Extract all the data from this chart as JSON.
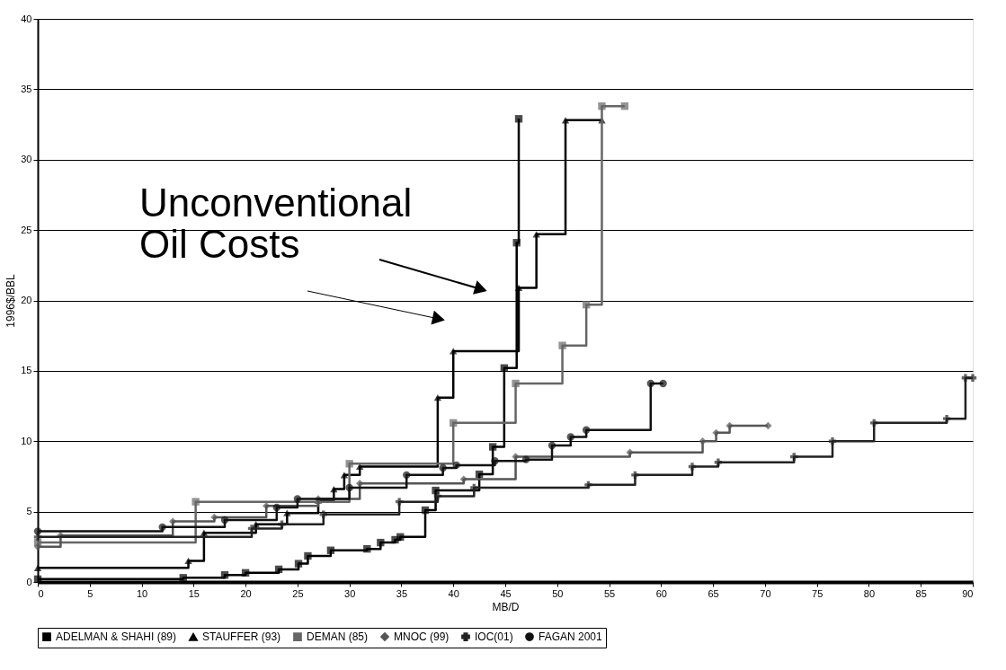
{
  "chart_data": {
    "type": "step",
    "xlabel": "MB/D",
    "ylabel": "1996$/BBL",
    "xlim": [
      0,
      90
    ],
    "xticks": [
      0,
      5,
      10,
      15,
      20,
      25,
      30,
      35,
      40,
      45,
      50,
      55,
      60,
      65,
      70,
      75,
      80,
      85,
      90
    ],
    "ylim": [
      0,
      40
    ],
    "yticks": [
      0,
      5,
      10,
      15,
      20,
      25,
      30,
      35,
      40
    ],
    "grid": "y",
    "legend": "bottom",
    "annotations": [
      "Unconventional\nOil Costs"
    ],
    "series": [
      {
        "name": "ADELMAN & SHAHI (89)",
        "color": "#000000",
        "marker": "square",
        "x": [
          0,
          14,
          18,
          20,
          23.2,
          25.1,
          26,
          28.2,
          31.7,
          33,
          34.4,
          34.9,
          37.3,
          38.3,
          42.5,
          43.8,
          44.9,
          46.1,
          46.3
        ],
        "values": [
          0.2,
          0.3,
          0.5,
          0.65,
          0.9,
          1.3,
          1.85,
          2.25,
          2.35,
          2.8,
          3.0,
          3.2,
          5.1,
          6.5,
          7.65,
          9.6,
          15.2,
          24.1,
          32.9
        ]
      },
      {
        "name": "STAUFFER (93)",
        "color": "#000000",
        "marker": "triangle",
        "x": [
          0,
          14.5,
          16,
          21,
          24,
          27,
          28.5,
          29.5,
          31,
          38.5,
          40,
          46.3,
          48,
          50.8,
          54.3
        ],
        "values": [
          1.0,
          1.5,
          3.5,
          4.1,
          4.9,
          5.8,
          6.6,
          7.6,
          8.2,
          13.1,
          16.4,
          20.9,
          24.7,
          32.8,
          32.8
        ]
      },
      {
        "name": "DEMAN (85)",
        "color": "#666666",
        "marker": "square",
        "x": [
          0,
          15.2,
          30,
          40,
          46,
          50.5,
          52.8,
          54.3,
          56.5
        ],
        "values": [
          2.8,
          5.7,
          8.4,
          11.3,
          14.1,
          16.8,
          19.7,
          33.8,
          33.8
        ]
      },
      {
        "name": "MNOC (99)",
        "color": "#555555",
        "marker": "diamond",
        "x": [
          0,
          2.2,
          13,
          17,
          22,
          27,
          31,
          41,
          46,
          57,
          64,
          65.3,
          66.6,
          70.3
        ],
        "values": [
          2.5,
          3.3,
          4.3,
          4.6,
          5.4,
          5.9,
          7.0,
          7.3,
          8.9,
          9.2,
          10.0,
          10.6,
          11.1,
          11.1
        ]
      },
      {
        "name": "IOC(01)",
        "color": "#222222",
        "marker": "cross",
        "x": [
          0,
          20.6,
          23.5,
          27.5,
          34.8,
          38.5,
          42,
          53,
          57.5,
          63,
          65.5,
          72.8,
          76.5,
          80.5,
          87.5,
          89.3,
          90
        ],
        "values": [
          3.2,
          3.8,
          4.1,
          4.8,
          5.7,
          6.1,
          6.7,
          6.9,
          7.6,
          8.2,
          8.5,
          8.9,
          10.0,
          11.3,
          11.6,
          14.5,
          14.5
        ]
      },
      {
        "name": "FAGAN 2001",
        "color": "#111111",
        "marker": "circle",
        "x": [
          0,
          12,
          18,
          23,
          25,
          30,
          35.5,
          39,
          40.3,
          44,
          47,
          49.5,
          51.3,
          52.8,
          59,
          60.2
        ],
        "values": [
          3.6,
          3.9,
          4.4,
          5.3,
          5.9,
          6.7,
          7.6,
          8.1,
          8.3,
          8.6,
          8.7,
          9.7,
          10.3,
          10.8,
          14.1,
          14.1
        ]
      }
    ]
  }
}
